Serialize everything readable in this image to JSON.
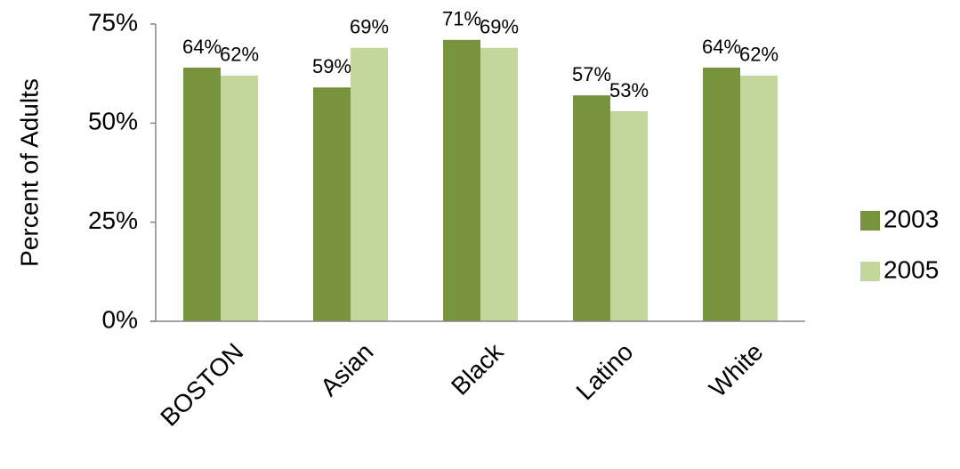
{
  "chart_data": {
    "type": "bar",
    "y_axis_label": "Percent of Adults",
    "categories": [
      "BOSTON",
      "Asian",
      "Black",
      "Latino",
      "White"
    ],
    "series": [
      {
        "name": "2003",
        "color": "#77933c",
        "values": [
          64,
          59,
          71,
          57,
          64
        ],
        "value_labels": [
          "64%",
          "59%",
          "71%",
          "57%",
          "64%"
        ]
      },
      {
        "name": "2005",
        "color": "#c3d69b",
        "values": [
          62,
          69,
          69,
          53,
          62
        ],
        "value_labels": [
          "62%",
          "69%",
          "69%",
          "53%",
          "62%"
        ]
      }
    ],
    "ylim": [
      0,
      75
    ],
    "yticks": [
      {
        "value": 0,
        "label": "0%"
      },
      {
        "value": 25,
        "label": "25%"
      },
      {
        "value": 50,
        "label": "50%"
      },
      {
        "value": 75,
        "label": "75%"
      }
    ],
    "grid": false,
    "legend": "right"
  }
}
